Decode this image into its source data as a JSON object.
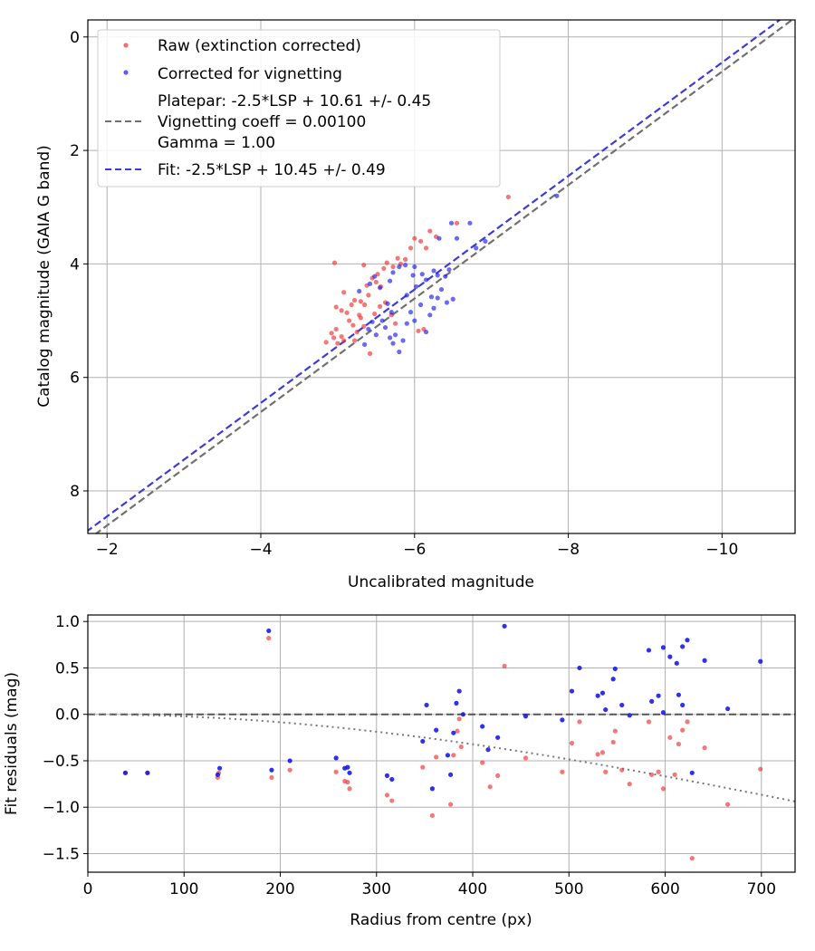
{
  "colors": {
    "raw": "#f03030",
    "corrected": "#1a1aee",
    "platepar_line": "#707070",
    "fit_line": "#3a3ae0",
    "grid": "#b0b0b0",
    "zero_line": "#555555",
    "vignetting_curve": "#777777"
  },
  "chart_data": [
    {
      "type": "scatter",
      "title": "",
      "xlabel": "Uncalibrated magnitude",
      "ylabel": "Catalog magnitude (GAIA G band)",
      "xlim": [
        -1.75,
        -10.95
      ],
      "ylim": [
        8.75,
        -0.3
      ],
      "x_inverted": true,
      "y_inverted": true,
      "x_ticks": [
        -2,
        -4,
        -6,
        -8,
        -10
      ],
      "x_tick_labels": [
        "−2",
        "−4",
        "−6",
        "−8",
        "−10"
      ],
      "y_ticks": [
        0,
        2,
        4,
        6,
        8
      ],
      "y_tick_labels": [
        "0",
        "2",
        "4",
        "6",
        "8"
      ],
      "grid": true,
      "legend_position": "top-left",
      "legend": [
        {
          "label": "Raw (extinction corrected)",
          "kind": "marker",
          "series": "raw"
        },
        {
          "label": "Corrected for vignetting",
          "kind": "marker",
          "series": "corrected"
        },
        {
          "label": "Platepar: -2.5*LSP + 10.61 +/- 0.45",
          "label2": "Vignetting coeff = 0.00100",
          "label3": "Gamma = 1.00",
          "kind": "line",
          "series": "platepar"
        },
        {
          "label": "Fit: -2.5*LSP + 10.45 +/- 0.49",
          "kind": "line",
          "series": "fit"
        }
      ],
      "lines": [
        {
          "name": "Platepar",
          "slope": 1.0,
          "intercept": 10.61,
          "style": "dashed",
          "color_key": "platepar_line"
        },
        {
          "name": "Fit",
          "slope": 1.0,
          "intercept": 10.45,
          "style": "dashed",
          "color_key": "fit_line"
        }
      ],
      "series": [
        {
          "name": "Raw (extinction corrected)",
          "color_key": "raw",
          "points": [
            [
              -4.96,
              3.98
            ],
            [
              -5.08,
              4.5
            ],
            [
              -4.98,
              4.76
            ],
            [
              -5.05,
              4.82
            ],
            [
              -5.12,
              4.86
            ],
            [
              -5.22,
              4.64
            ],
            [
              -5.18,
              4.72
            ],
            [
              -5.28,
              4.9
            ],
            [
              -5.3,
              4.66
            ],
            [
              -5.35,
              4.72
            ],
            [
              -5.4,
              4.55
            ],
            [
              -5.38,
              4.38
            ],
            [
              -5.45,
              4.25
            ],
            [
              -5.5,
              4.32
            ],
            [
              -5.56,
              4.4
            ],
            [
              -5.34,
              4.02
            ],
            [
              -5.52,
              4.18
            ],
            [
              -5.6,
              4.08
            ],
            [
              -5.64,
              3.98
            ],
            [
              -5.72,
              4.05
            ],
            [
              -5.78,
              3.9
            ],
            [
              -5.82,
              4.0
            ],
            [
              -5.88,
              3.92
            ],
            [
              -5.95,
              3.72
            ],
            [
              -6.0,
              3.55
            ],
            [
              -6.08,
              3.6
            ],
            [
              -6.15,
              3.72
            ],
            [
              -6.2,
              3.42
            ],
            [
              -6.28,
              3.52
            ],
            [
              -6.55,
              3.28
            ],
            [
              -7.22,
              2.82
            ],
            [
              -4.85,
              5.38
            ],
            [
              -4.92,
              5.22
            ],
            [
              -4.95,
              5.3
            ],
            [
              -4.98,
              5.15
            ],
            [
              -5.0,
              5.4
            ],
            [
              -5.05,
              5.28
            ],
            [
              -5.08,
              5.35
            ],
            [
              -5.15,
              5.0
            ],
            [
              -5.2,
              5.08
            ],
            [
              -5.25,
              5.2
            ],
            [
              -5.3,
              4.95
            ],
            [
              -5.34,
              5.1
            ],
            [
              -5.22,
              5.35
            ],
            [
              -5.42,
              5.58
            ],
            [
              -5.48,
              4.88
            ],
            [
              -5.55,
              4.75
            ],
            [
              -5.62,
              4.68
            ],
            [
              -5.7,
              4.9
            ],
            [
              -5.75,
              5.05
            ],
            [
              -6.05,
              5.18
            ],
            [
              -6.12,
              5.15
            ]
          ]
        },
        {
          "name": "Corrected for vignetting",
          "color_key": "corrected",
          "points": [
            [
              -5.28,
              4.48
            ],
            [
              -5.42,
              4.35
            ],
            [
              -5.48,
              4.22
            ],
            [
              -5.55,
              4.42
            ],
            [
              -5.68,
              4.3
            ],
            [
              -5.72,
              4.15
            ],
            [
              -5.8,
              4.05
            ],
            [
              -5.88,
              4.02
            ],
            [
              -6.0,
              4.05
            ],
            [
              -5.98,
              4.2
            ],
            [
              -6.1,
              4.18
            ],
            [
              -6.15,
              4.28
            ],
            [
              -6.25,
              4.12
            ],
            [
              -6.3,
              4.2
            ],
            [
              -6.4,
              4.22
            ],
            [
              -6.45,
              4.1
            ],
            [
              -6.32,
              3.55
            ],
            [
              -6.48,
              3.28
            ],
            [
              -6.55,
              3.55
            ],
            [
              -6.72,
              3.28
            ],
            [
              -6.8,
              3.72
            ],
            [
              -6.92,
              3.6
            ],
            [
              -7.85,
              2.8
            ],
            [
              -5.35,
              5.42
            ],
            [
              -5.4,
              5.15
            ],
            [
              -5.45,
              5.02
            ],
            [
              -5.5,
              5.25
            ],
            [
              -5.58,
              5.0
            ],
            [
              -5.62,
              5.12
            ],
            [
              -5.68,
              5.3
            ],
            [
              -5.72,
              5.4
            ],
            [
              -5.75,
              5.25
            ],
            [
              -5.8,
              5.55
            ],
            [
              -5.85,
              5.35
            ],
            [
              -5.9,
              5.05
            ],
            [
              -5.95,
              4.85
            ],
            [
              -6.0,
              5.0
            ],
            [
              -6.08,
              4.72
            ],
            [
              -6.15,
              5.2
            ],
            [
              -6.2,
              4.9
            ],
            [
              -6.25,
              4.78
            ],
            [
              -6.3,
              4.6
            ],
            [
              -6.35,
              4.45
            ],
            [
              -6.42,
              4.68
            ],
            [
              -6.5,
              4.62
            ],
            [
              -5.65,
              4.7
            ],
            [
              -5.7,
              4.85
            ],
            [
              -5.9,
              4.55
            ],
            [
              -6.02,
              4.4
            ],
            [
              -6.22,
              4.58
            ]
          ]
        }
      ]
    },
    {
      "type": "scatter",
      "title": "",
      "xlabel": "Radius from centre (px)",
      "ylabel": "Fit residuals (mag)",
      "xlim": [
        0,
        735
      ],
      "ylim": [
        -1.7,
        1.07
      ],
      "x_ticks": [
        0,
        100,
        200,
        300,
        400,
        500,
        600,
        700
      ],
      "x_tick_labels": [
        "0",
        "100",
        "200",
        "300",
        "400",
        "500",
        "600",
        "700"
      ],
      "y_ticks": [
        -1.5,
        -1.0,
        -0.5,
        0.0,
        0.5,
        1.0
      ],
      "y_tick_labels": [
        "−1.5",
        "−1.0",
        "−0.5",
        "0.0",
        "0.5",
        "1.0"
      ],
      "grid": true,
      "reference_lines": [
        {
          "name": "zero",
          "y": 0.0,
          "style": "dashed",
          "color_key": "zero_line"
        },
        {
          "name": "vignetting",
          "style": "dotted",
          "color_key": "vignetting_curve",
          "coeff": 0.001
        }
      ],
      "series": [
        {
          "name": "Raw (extinction corrected)",
          "color_key": "raw",
          "points": [
            [
              39,
              -0.63
            ],
            [
              62,
              -0.63
            ],
            [
              135,
              -0.68
            ],
            [
              136,
              -0.63
            ],
            [
              188,
              0.82
            ],
            [
              191,
              -0.68
            ],
            [
              210,
              -0.6
            ],
            [
              258,
              -0.62
            ],
            [
              267,
              -0.72
            ],
            [
              270,
              -0.73
            ],
            [
              272,
              -0.8
            ],
            [
              311,
              -0.87
            ],
            [
              316,
              -0.93
            ],
            [
              348,
              -0.57
            ],
            [
              358,
              -1.09
            ],
            [
              362,
              -0.46
            ],
            [
              377,
              -0.97
            ],
            [
              380,
              -0.44
            ],
            [
              384,
              -0.18
            ],
            [
              386,
              -0.05
            ],
            [
              388,
              -0.35
            ],
            [
              410,
              -0.52
            ],
            [
              418,
              -0.78
            ],
            [
              426,
              -0.66
            ],
            [
              433,
              0.52
            ],
            [
              455,
              -0.47
            ],
            [
              493,
              -0.62
            ],
            [
              503,
              -0.31
            ],
            [
              511,
              -0.08
            ],
            [
              530,
              -0.43
            ],
            [
              535,
              -0.41
            ],
            [
              538,
              -0.62
            ],
            [
              546,
              -0.3
            ],
            [
              548,
              -0.18
            ],
            [
              555,
              -0.6
            ],
            [
              563,
              -0.75
            ],
            [
              583,
              -0.08
            ],
            [
              586,
              -0.65
            ],
            [
              593,
              -0.62
            ],
            [
              598,
              -0.8
            ],
            [
              605,
              -0.25
            ],
            [
              610,
              -0.65
            ],
            [
              614,
              -0.32
            ],
            [
              618,
              -0.17
            ],
            [
              623,
              -0.08
            ],
            [
              628,
              -1.55
            ],
            [
              641,
              -0.36
            ],
            [
              665,
              -0.97
            ],
            [
              699,
              -0.59
            ]
          ]
        },
        {
          "name": "Corrected for vignetting",
          "color_key": "corrected",
          "points": [
            [
              39,
              -0.63
            ],
            [
              62,
              -0.63
            ],
            [
              135,
              -0.65
            ],
            [
              137,
              -0.58
            ],
            [
              188,
              0.9
            ],
            [
              191,
              -0.6
            ],
            [
              210,
              -0.5
            ],
            [
              258,
              -0.47
            ],
            [
              267,
              -0.58
            ],
            [
              270,
              -0.57
            ],
            [
              272,
              -0.63
            ],
            [
              311,
              -0.66
            ],
            [
              316,
              -0.7
            ],
            [
              348,
              -0.29
            ],
            [
              352,
              0.1
            ],
            [
              358,
              -0.8
            ],
            [
              362,
              -0.17
            ],
            [
              374,
              -0.44
            ],
            [
              377,
              -0.65
            ],
            [
              380,
              -0.2
            ],
            [
              383,
              0.12
            ],
            [
              386,
              0.25
            ],
            [
              390,
              0.0
            ],
            [
              410,
              -0.13
            ],
            [
              416,
              -0.38
            ],
            [
              426,
              -0.25
            ],
            [
              433,
              0.95
            ],
            [
              455,
              -0.02
            ],
            [
              493,
              -0.06
            ],
            [
              503,
              0.25
            ],
            [
              511,
              0.5
            ],
            [
              530,
              0.2
            ],
            [
              535,
              0.23
            ],
            [
              538,
              0.05
            ],
            [
              546,
              0.38
            ],
            [
              548,
              0.49
            ],
            [
              555,
              0.1
            ],
            [
              563,
              -0.01
            ],
            [
              583,
              0.69
            ],
            [
              586,
              0.14
            ],
            [
              593,
              0.2
            ],
            [
              598,
              0.02
            ],
            [
              598,
              0.72
            ],
            [
              605,
              0.62
            ],
            [
              612,
              0.55
            ],
            [
              614,
              0.21
            ],
            [
              618,
              0.1
            ],
            [
              618,
              0.73
            ],
            [
              623,
              0.8
            ],
            [
              628,
              -0.63
            ],
            [
              641,
              0.58
            ],
            [
              665,
              0.06
            ],
            [
              699,
              0.57
            ]
          ]
        }
      ]
    }
  ]
}
